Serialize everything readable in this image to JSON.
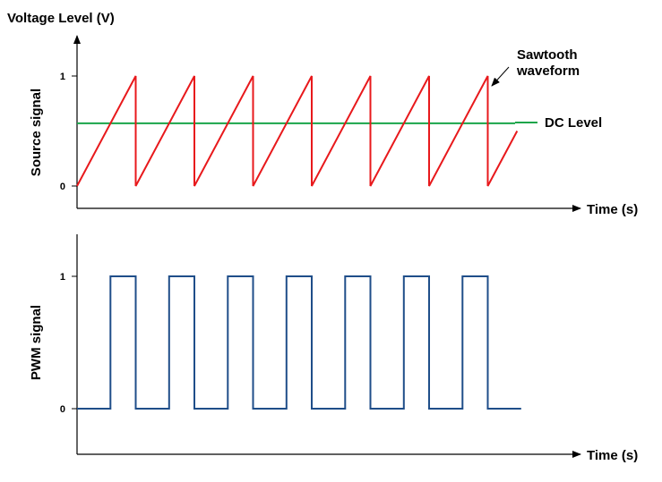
{
  "chart_data": [
    {
      "type": "line",
      "title": "Voltage Level (V)",
      "xlabel": "Time (s)",
      "ylabel": "Source signal",
      "ylim": [
        0,
        1
      ],
      "y_ticks": [
        "0",
        "1"
      ],
      "grid": false,
      "colors": {
        "sawtooth": "#e8191c",
        "dc": "#1aa54a",
        "axis": "#000000"
      },
      "series": [
        {
          "name": "Sawtooth waveform",
          "x": [
            0,
            1,
            1,
            2,
            2,
            3,
            3,
            4,
            4,
            5,
            5,
            6,
            6,
            7,
            7,
            7.5
          ],
          "y": [
            0,
            1,
            0,
            1,
            0,
            1,
            0,
            1,
            0,
            1,
            0,
            1,
            0,
            1,
            0,
            0.5
          ]
        },
        {
          "name": "DC Level",
          "x": [
            0,
            8
          ],
          "y": [
            0.57,
            0.57
          ]
        }
      ],
      "annotations": [
        "Sawtooth waveform",
        "DC Level"
      ]
    },
    {
      "type": "line",
      "xlabel": "Time (s)",
      "ylabel": "PWM signal",
      "ylim": [
        0,
        1
      ],
      "y_ticks": [
        "0",
        "1"
      ],
      "grid": false,
      "colors": {
        "pwm": "#1f4e89"
      },
      "series": [
        {
          "name": "PWM",
          "x": [
            0,
            0.57,
            0.57,
            1,
            1,
            1.57,
            1.57,
            2,
            2,
            2.57,
            2.57,
            3,
            3,
            3.57,
            3.57,
            4,
            4,
            4.57,
            4.57,
            5,
            5,
            5.57,
            5.57,
            6,
            6,
            6.57,
            6.57,
            7,
            7,
            7.57
          ],
          "y": [
            0,
            0,
            1,
            1,
            0,
            0,
            1,
            1,
            0,
            0,
            1,
            1,
            0,
            0,
            1,
            1,
            0,
            0,
            1,
            1,
            0,
            0,
            1,
            1,
            0,
            0,
            1,
            1,
            0,
            0
          ]
        }
      ]
    }
  ]
}
